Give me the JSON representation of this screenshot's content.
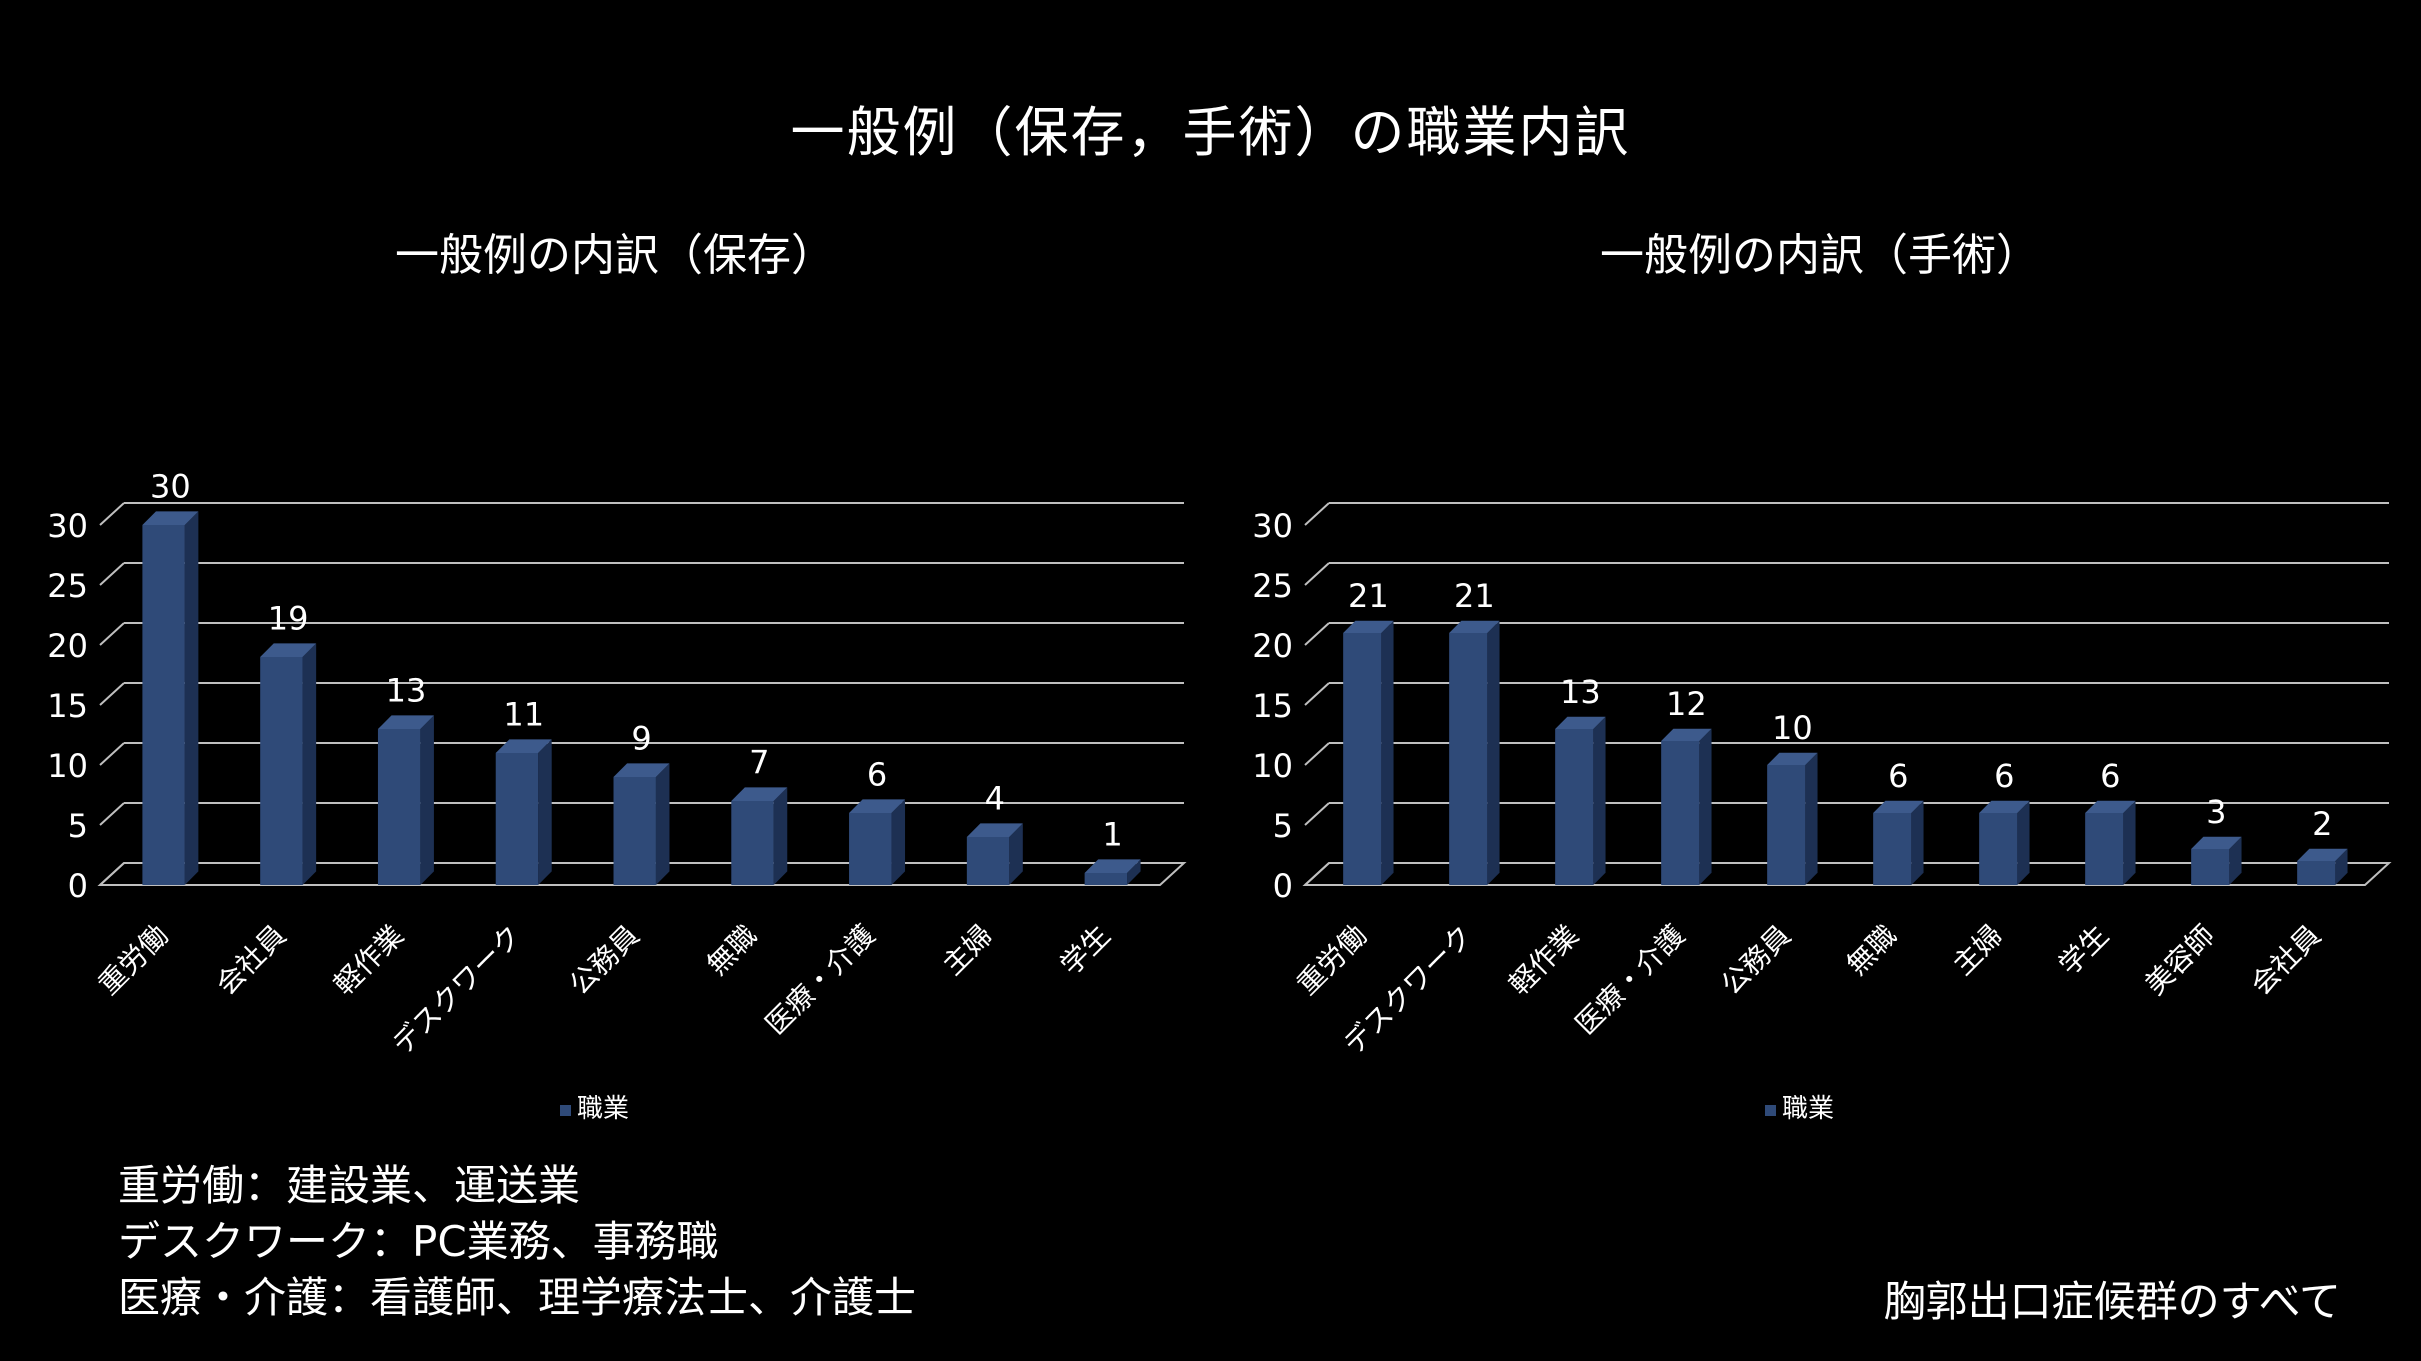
{
  "title": "一般例（保存，手術）の職業内訳",
  "chart_data": [
    {
      "type": "bar",
      "title": "一般例の内訳（保存）",
      "categories": [
        "重労働",
        "会社員",
        "軽作業",
        "デスクワーク",
        "公務員",
        "無職",
        "医療・介護",
        "主婦",
        "学生"
      ],
      "series": [
        {
          "name": "職業",
          "values": [
            30,
            19,
            13,
            11,
            9,
            7,
            6,
            4,
            1
          ]
        }
      ],
      "ylim": [
        0,
        30
      ],
      "yticks": [
        0,
        5,
        10,
        15,
        20,
        25,
        30
      ],
      "grid": true,
      "legend": "bottom",
      "color": "#2f4a78"
    },
    {
      "type": "bar",
      "title": "一般例の内訳（手術）",
      "categories": [
        "重労働",
        "デスクワーク",
        "軽作業",
        "医療・介護",
        "公務員",
        "無職",
        "主婦",
        "学生",
        "美容師",
        "会社員"
      ],
      "series": [
        {
          "name": "職業",
          "values": [
            21,
            21,
            13,
            12,
            10,
            6,
            6,
            6,
            3,
            2
          ]
        }
      ],
      "ylim": [
        0,
        30
      ],
      "yticks": [
        0,
        5,
        10,
        15,
        20,
        25,
        30
      ],
      "grid": true,
      "legend": "bottom",
      "color": "#2f4a78"
    }
  ],
  "notes": [
    "重労働：建設業、運送業",
    "デスクワーク：PC業務、事務職",
    "医療・介護：看護師、理学療法士、介護士"
  ],
  "credit": "胸郭出口症候群のすべて"
}
